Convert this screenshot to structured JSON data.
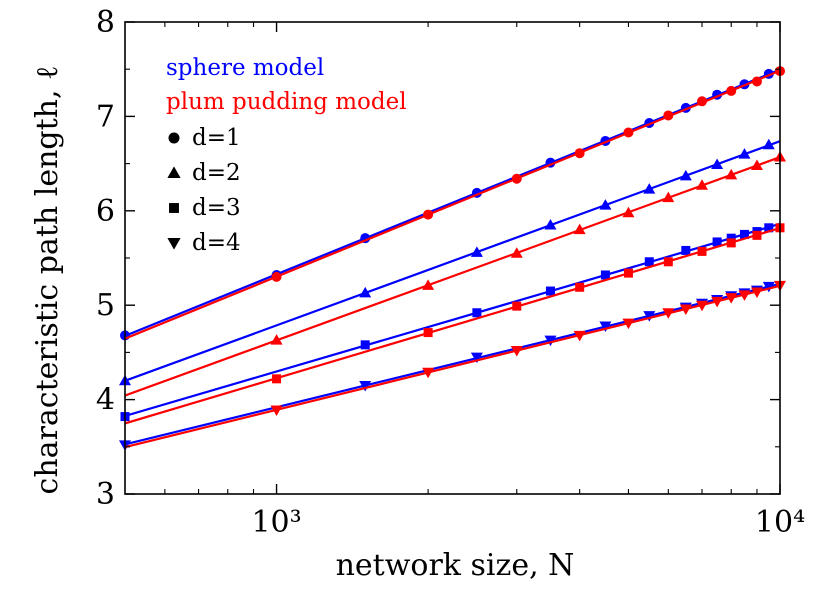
{
  "chart_data": {
    "type": "scatter",
    "title": "",
    "xlabel": "network size, N",
    "ylabel": "characteristic path length, ℓ",
    "xscale": "log",
    "xlim": [
      500,
      10000
    ],
    "ylim": [
      3,
      8
    ],
    "x_ticks": [
      1000,
      10000
    ],
    "x_tick_labels": [
      "10³",
      "10⁴"
    ],
    "y_ticks": [
      3,
      4,
      5,
      6,
      7,
      8
    ],
    "y_tick_labels": [
      "3",
      "4",
      "5",
      "6",
      "7",
      "8"
    ],
    "grid": false,
    "legend_placement": "top-left",
    "legend": {
      "models": [
        {
          "key": "sphere",
          "label": "sphere model",
          "color": "#0000ff"
        },
        {
          "key": "plum",
          "label": "plum pudding model",
          "color": "#ff0000"
        }
      ],
      "dims": [
        {
          "label": "d=1",
          "marker": "circle"
        },
        {
          "label": "d=2",
          "marker": "triangle-up"
        },
        {
          "label": "d=3",
          "marker": "square"
        },
        {
          "label": "d=4",
          "marker": "triangle-down"
        }
      ]
    },
    "series": [
      {
        "model": "sphere",
        "d": 1,
        "marker": "circle",
        "color": "#0000ff",
        "x": [
          500,
          1000,
          1500,
          2500,
          3500,
          4500,
          5500,
          6500,
          7500,
          8500,
          9500
        ],
        "y": [
          4.68,
          5.32,
          5.71,
          6.19,
          6.51,
          6.74,
          6.93,
          7.09,
          7.23,
          7.34,
          7.45
        ]
      },
      {
        "model": "plum",
        "d": 1,
        "marker": "circle",
        "color": "#ff0000",
        "x": [
          1000,
          2000,
          3000,
          4000,
          5000,
          6000,
          7000,
          8000,
          9000,
          10000
        ],
        "y": [
          5.3,
          5.96,
          6.34,
          6.61,
          6.83,
          7.01,
          7.16,
          7.27,
          7.37,
          7.48
        ]
      },
      {
        "model": "sphere",
        "d": 2,
        "marker": "triangle-up",
        "color": "#0000ff",
        "x": [
          500,
          1500,
          2500,
          3500,
          4500,
          5500,
          6500,
          7500,
          8500,
          9500
        ],
        "y": [
          4.2,
          5.13,
          5.56,
          5.85,
          6.06,
          6.23,
          6.37,
          6.49,
          6.6,
          6.7
        ]
      },
      {
        "model": "plum",
        "d": 2,
        "marker": "triangle-up",
        "color": "#ff0000",
        "x": [
          1000,
          2000,
          3000,
          4000,
          5000,
          6000,
          7000,
          8000,
          9000,
          10000
        ],
        "y": [
          4.63,
          5.21,
          5.55,
          5.8,
          5.98,
          6.14,
          6.27,
          6.38,
          6.48,
          6.57
        ]
      },
      {
        "model": "sphere",
        "d": 3,
        "marker": "square",
        "color": "#0000ff",
        "x": [
          500,
          1500,
          2500,
          3500,
          4500,
          5500,
          6500,
          7500,
          8000,
          8500,
          9000,
          9500
        ],
        "y": [
          3.82,
          4.58,
          4.92,
          5.15,
          5.32,
          5.46,
          5.58,
          5.67,
          5.71,
          5.75,
          5.78,
          5.82
        ]
      },
      {
        "model": "plum",
        "d": 3,
        "marker": "square",
        "color": "#ff0000",
        "x": [
          1000,
          2000,
          3000,
          4000,
          5000,
          6000,
          7000,
          8000,
          9000,
          10000
        ],
        "y": [
          4.22,
          4.71,
          4.99,
          5.19,
          5.34,
          5.46,
          5.57,
          5.66,
          5.74,
          5.82
        ]
      },
      {
        "model": "sphere",
        "d": 4,
        "marker": "triangle-down",
        "color": "#0000ff",
        "x": [
          500,
          1500,
          2500,
          3500,
          4500,
          5500,
          6500,
          7000,
          7500,
          8000,
          8500,
          9000,
          9500
        ],
        "y": [
          3.52,
          4.15,
          4.45,
          4.63,
          4.78,
          4.89,
          4.98,
          5.02,
          5.06,
          5.1,
          5.13,
          5.16,
          5.2
        ]
      },
      {
        "model": "plum",
        "d": 4,
        "marker": "triangle-down",
        "color": "#ff0000",
        "x": [
          1000,
          2000,
          3000,
          4000,
          5000,
          6000,
          6500,
          7000,
          7500,
          8000,
          8500,
          9000,
          10000
        ],
        "y": [
          3.89,
          4.29,
          4.52,
          4.68,
          4.81,
          4.92,
          4.96,
          5.0,
          5.04,
          5.08,
          5.11,
          5.14,
          5.21
        ]
      }
    ]
  }
}
